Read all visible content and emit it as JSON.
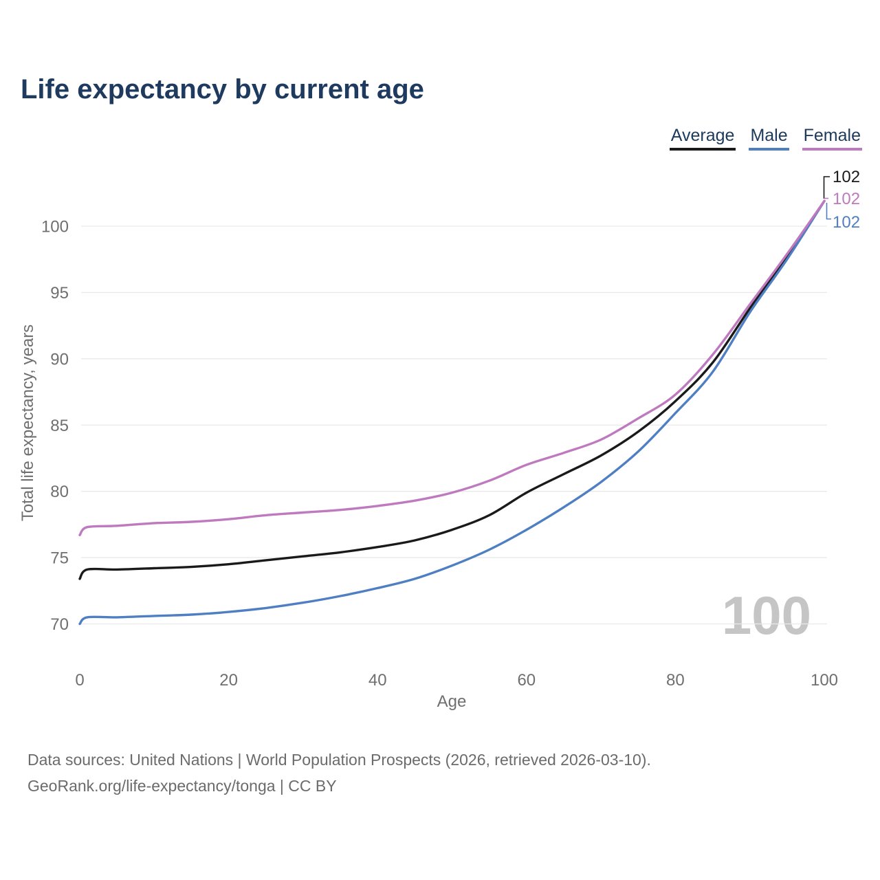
{
  "title": "Life expectancy by current age",
  "watermark": "100",
  "colors": {
    "title_text": "#1e3a5f",
    "legend_text": "#1d3a5c",
    "axis_text": "#6f6f6f",
    "gridline": "#e9e9e9",
    "watermark": "#c5c5c5",
    "background": "#ffffff",
    "average": "#1a1a1a",
    "male": "#4f7fc3",
    "female": "#bf7abf"
  },
  "legend": {
    "items": [
      {
        "label": "Average",
        "color": "#1a1a1a"
      },
      {
        "label": "Male",
        "color": "#4f7fc3"
      },
      {
        "label": "Female",
        "color": "#bf7abf"
      }
    ]
  },
  "footer": {
    "line1": "Data sources: United Nations | World Population Prospects (2026, retrieved 2026-03-10).",
    "line2": "GeoRank.org/life-expectancy/tonga | CC BY"
  },
  "chart_data": {
    "type": "line",
    "title": "Life expectancy by current age",
    "xlabel": "Age",
    "ylabel": "Total life expectancy, years",
    "xlim": [
      0,
      100
    ],
    "ylim": [
      69,
      103
    ],
    "xticks": [
      0,
      20,
      40,
      60,
      80,
      100
    ],
    "yticks": [
      70,
      75,
      80,
      85,
      90,
      95,
      100
    ],
    "grid": "horizontal",
    "legend_position": "top-right",
    "x": [
      0,
      1,
      5,
      10,
      15,
      20,
      25,
      30,
      35,
      40,
      45,
      50,
      55,
      60,
      65,
      70,
      75,
      80,
      85,
      90,
      95,
      100
    ],
    "series": [
      {
        "name": "Average",
        "color": "#1a1a1a",
        "label_slot": 0,
        "end_label": "102",
        "values": [
          73.4,
          74.1,
          74.1,
          74.2,
          74.3,
          74.5,
          74.8,
          75.1,
          75.4,
          75.8,
          76.3,
          77.1,
          78.2,
          79.9,
          81.3,
          82.7,
          84.5,
          86.8,
          89.7,
          93.8,
          97.7,
          101.9
        ]
      },
      {
        "name": "Male",
        "color": "#4f7fc3",
        "label_slot": 2,
        "end_label": "102",
        "values": [
          70.0,
          70.5,
          70.5,
          70.6,
          70.7,
          70.9,
          71.2,
          71.6,
          72.1,
          72.7,
          73.4,
          74.4,
          75.6,
          77.1,
          78.8,
          80.7,
          83.0,
          85.9,
          89.0,
          93.5,
          97.5,
          101.9
        ]
      },
      {
        "name": "Female",
        "color": "#bf7abf",
        "label_slot": 1,
        "end_label": "102",
        "values": [
          76.7,
          77.3,
          77.4,
          77.6,
          77.7,
          77.9,
          78.2,
          78.4,
          78.6,
          78.9,
          79.3,
          79.9,
          80.8,
          82.0,
          82.9,
          83.9,
          85.5,
          87.3,
          90.3,
          94.1,
          97.9,
          101.9
        ]
      }
    ]
  }
}
